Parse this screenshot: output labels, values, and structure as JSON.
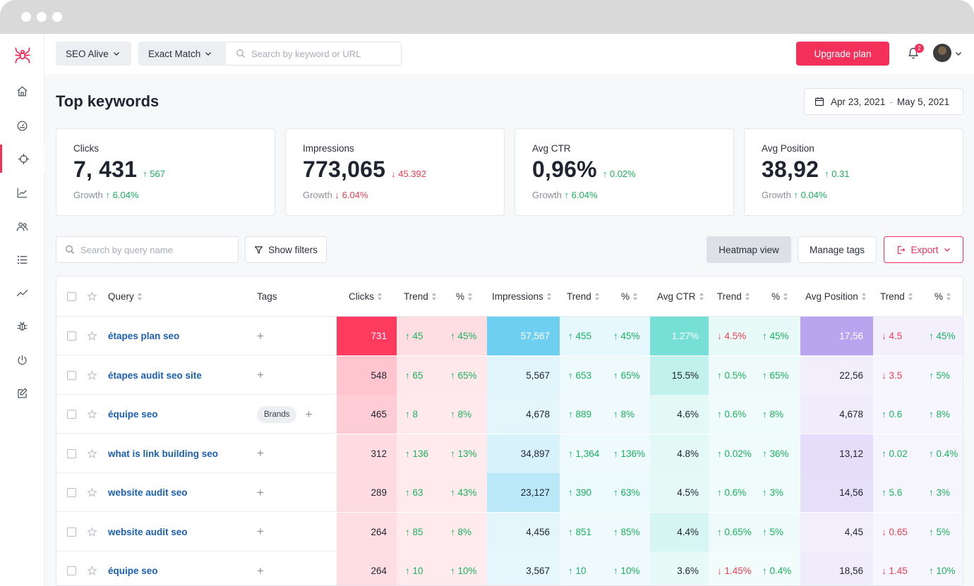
{
  "topbar": {
    "project": "SEO Alive",
    "match_type": "Exact Match",
    "search_placeholder": "Search by keyword or URL",
    "upgrade_label": "Upgrade plan",
    "notifications_count": "2"
  },
  "page": {
    "title": "Top keywords",
    "date_start": "Apr 23, 2021",
    "date_sep": "-",
    "date_end": "May 5, 2021"
  },
  "cards": [
    {
      "label": "Clicks",
      "value": "7, 431",
      "delta": "↑ 567",
      "delta_dir": "up",
      "growth_label": "Growth",
      "growth": "↑ 6.04%",
      "growth_dir": "up"
    },
    {
      "label": "Impressions",
      "value": "773,065",
      "delta": "↓ 45.392",
      "delta_dir": "down",
      "growth_label": "Growth",
      "growth": "↓ 6.04%",
      "growth_dir": "down"
    },
    {
      "label": "Avg CTR",
      "value": "0,96%",
      "delta": "↑ 0.02%",
      "delta_dir": "up",
      "growth_label": "Growth",
      "growth": "↑ 6.04%",
      "growth_dir": "up"
    },
    {
      "label": "Avg Position",
      "value": "38,92",
      "delta": "↑ 0.31",
      "delta_dir": "up",
      "growth_label": "Growth",
      "growth": "↑ 0.04%",
      "growth_dir": "up"
    }
  ],
  "toolbar": {
    "query_search_placeholder": "Search by query name",
    "show_filters": "Show filters",
    "heatmap_view": "Heatmap view",
    "manage_tags": "Manage tags",
    "export": "Export"
  },
  "colors": {
    "accent": "#f2305a",
    "up": "#19b35c",
    "down": "#ef3e4f",
    "clicks_heat": "#fc3b5f",
    "impressions_heat": "#6fcff1",
    "ctr_heat": "#76e0d6",
    "position_heat": "#b8a4ef"
  },
  "table": {
    "headers": {
      "query": "Query",
      "tags": "Tags",
      "clicks": "Clicks",
      "trend": "Trend",
      "pct": "%",
      "impressions": "Impressions",
      "avg_ctr": "Avg CTR",
      "avg_position": "Avg Position"
    },
    "rows": [
      {
        "query": "étapes plan seo",
        "tag": "",
        "clicks": "731",
        "clicks_heat": 1.0,
        "clicks_trend": "↑ 45",
        "clicks_trend_dir": "up",
        "clicks_pct": "↑ 45%",
        "clicks_pct_dir": "up",
        "impressions": "57,567",
        "imp_heat": 1.0,
        "imp_trend": "↑ 455",
        "imp_trend_dir": "up",
        "imp_pct": "↑ 45%",
        "imp_pct_dir": "up",
        "ctr": "1.27%",
        "ctr_heat": 1.0,
        "ctr_trend": "↓ 4.5%",
        "ctr_trend_dir": "down",
        "ctr_pct": "↑ 45%",
        "ctr_pct_dir": "up",
        "position": "17,56",
        "pos_heat": 1.0,
        "pos_trend": "↓ 4.5",
        "pos_trend_dir": "down",
        "pos_pct": "↑ 45%",
        "pos_pct_dir": "up"
      },
      {
        "query": "étapes audit seo site",
        "tag": "",
        "clicks": "548",
        "clicks_heat": 0.22,
        "clicks_trend": "↑ 65",
        "clicks_trend_dir": "up",
        "clicks_pct": "↑ 65%",
        "clicks_pct_dir": "up",
        "impressions": "5,567",
        "imp_heat": 0.12,
        "imp_trend": "↑ 653",
        "imp_trend_dir": "up",
        "imp_pct": "↑ 65%",
        "imp_pct_dir": "up",
        "ctr": "15.5%",
        "ctr_heat": 0.38,
        "ctr_trend": "↑ 0.5%",
        "ctr_trend_dir": "up",
        "ctr_pct": "↑ 65%",
        "ctr_pct_dir": "up",
        "position": "22,56",
        "pos_heat": 0.1,
        "pos_trend": "↓ 3.5",
        "pos_trend_dir": "down",
        "pos_pct": "↑ 5%",
        "pos_pct_dir": "up"
      },
      {
        "query": "équipe seo",
        "tag": "Brands",
        "clicks": "465",
        "clicks_heat": 0.18,
        "clicks_trend": "↑ 8",
        "clicks_trend_dir": "up",
        "clicks_pct": "↑ 8%",
        "clicks_pct_dir": "up",
        "impressions": "4,678",
        "imp_heat": 0.1,
        "imp_trend": "↑ 889",
        "imp_trend_dir": "up",
        "imp_pct": "↑ 8%",
        "imp_pct_dir": "up",
        "ctr": "4.6%",
        "ctr_heat": 0.12,
        "ctr_trend": "↑ 0.6%",
        "ctr_trend_dir": "up",
        "ctr_pct": "↑ 8%",
        "ctr_pct_dir": "up",
        "position": "4,678",
        "pos_heat": 0.12,
        "pos_trend": "↑ 0.6",
        "pos_trend_dir": "up",
        "pos_pct": "↑ 8%",
        "pos_pct_dir": "up"
      },
      {
        "query": "what is link building seo",
        "tag": "",
        "clicks": "312",
        "clicks_heat": 0.1,
        "clicks_trend": "↑ 136",
        "clicks_trend_dir": "up",
        "clicks_pct": "↑ 13%",
        "clicks_pct_dir": "up",
        "impressions": "34,897",
        "imp_heat": 0.2,
        "imp_trend": "↑ 1,364",
        "imp_trend_dir": "up",
        "imp_pct": "↑ 136%",
        "imp_pct_dir": "up",
        "ctr": "4.8%",
        "ctr_heat": 0.12,
        "ctr_trend": "↑ 0.02%",
        "ctr_trend_dir": "up",
        "ctr_pct": "↑ 36%",
        "ctr_pct_dir": "up",
        "position": "13,12",
        "pos_heat": 0.3,
        "pos_trend": "↑ 0.02",
        "pos_trend_dir": "up",
        "pos_pct": "↑ 0.4%",
        "pos_pct_dir": "up"
      },
      {
        "query": "website audit seo",
        "tag": "",
        "clicks": "289",
        "clicks_heat": 0.1,
        "clicks_trend": "↑ 63",
        "clicks_trend_dir": "up",
        "clicks_pct": "↑ 43%",
        "clicks_pct_dir": "up",
        "impressions": "23,127",
        "imp_heat": 0.42,
        "imp_trend": "↑ 390",
        "imp_trend_dir": "up",
        "imp_pct": "↑ 63%",
        "imp_pct_dir": "up",
        "ctr": "4.5%",
        "ctr_heat": 0.1,
        "ctr_trend": "↑ 0.6%",
        "ctr_trend_dir": "up",
        "ctr_pct": "↑ 3%",
        "ctr_pct_dir": "up",
        "position": "14,56",
        "pos_heat": 0.28,
        "pos_trend": "↑ 5.6",
        "pos_trend_dir": "up",
        "pos_pct": "↑ 3%",
        "pos_pct_dir": "up"
      },
      {
        "query": "website audit seo",
        "tag": "",
        "clicks": "264",
        "clicks_heat": 0.08,
        "clicks_trend": "↑ 85",
        "clicks_trend_dir": "up",
        "clicks_pct": "↑ 8%",
        "clicks_pct_dir": "up",
        "impressions": "4,456",
        "imp_heat": 0.1,
        "imp_trend": "↑ 851",
        "imp_trend_dir": "up",
        "imp_pct": "↑ 85%",
        "imp_pct_dir": "up",
        "ctr": "4.4%",
        "ctr_heat": 0.22,
        "ctr_trend": "↑ 0.65%",
        "ctr_trend_dir": "up",
        "ctr_pct": "↑ 5%",
        "ctr_pct_dir": "up",
        "position": "4,45",
        "pos_heat": 0.1,
        "pos_trend": "↓ 0.65",
        "pos_trend_dir": "down",
        "pos_pct": "↑ 5%",
        "pos_pct_dir": "up"
      },
      {
        "query": "équipe seo",
        "tag": "",
        "clicks": "264",
        "clicks_heat": 0.08,
        "clicks_trend": "↑ 10",
        "clicks_trend_dir": "up",
        "clicks_pct": "↑ 10%",
        "clicks_pct_dir": "up",
        "impressions": "3,567",
        "imp_heat": 0.08,
        "imp_trend": "↑ 10",
        "imp_trend_dir": "up",
        "imp_pct": "↑ 10%",
        "imp_pct_dir": "up",
        "ctr": "3.6%",
        "ctr_heat": 0.08,
        "ctr_trend": "↓ 1.45%",
        "ctr_trend_dir": "down",
        "ctr_pct": "↑ 0.4%",
        "ctr_pct_dir": "up",
        "position": "18,56",
        "pos_heat": 0.12,
        "pos_trend": "↓ 1.45",
        "pos_trend_dir": "down",
        "pos_pct": "↑ 10%",
        "pos_pct_dir": "up"
      }
    ]
  }
}
